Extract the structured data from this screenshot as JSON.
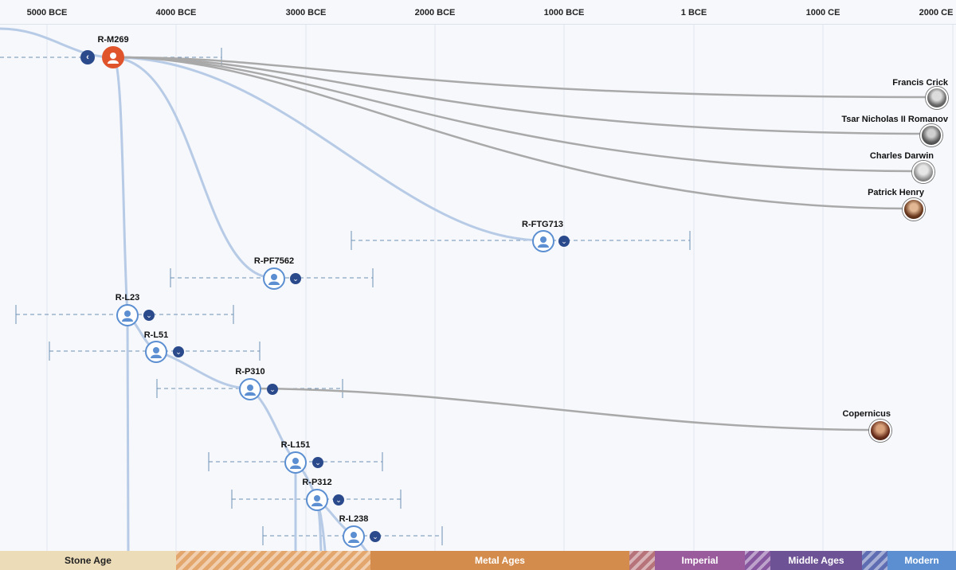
{
  "axis": {
    "ticks": [
      "5000 BCE",
      "4000 BCE",
      "3000 BCE",
      "2000 BCE",
      "1000 BCE",
      "1 BCE",
      "1000 CE",
      "2000 CE"
    ]
  },
  "eras": {
    "stone_age": "Stone Age",
    "metal_ages": "Metal Ages",
    "imperial": "Imperial",
    "middle_ages": "Middle Ages",
    "modern": "Modern"
  },
  "haplogroups": {
    "root": "R-M269",
    "ftg713": "R-FTG713",
    "pf7562": "R-PF7562",
    "l23": "R-L23",
    "l51": "R-L51",
    "p310": "R-P310",
    "l151": "R-L151",
    "p312": "R-P312",
    "l238": "R-L238"
  },
  "people": {
    "crick": "Francis Crick",
    "nicholas": "Tsar Nicholas II Romanov",
    "darwin": "Charles Darwin",
    "henry": "Patrick Henry",
    "copernicus": "Copernicus"
  },
  "colors": {
    "lineage_line": "#b7cbe6",
    "person_line": "#a9a9a9",
    "node_ring": "#5b8fd1",
    "root_node": "#e0542c",
    "expand": "#2b4a8b",
    "stone_age": "#ecdcb8",
    "metal_ages": "#d38c4c",
    "imperial": "#9a5b9d",
    "middle_ages": "#6d5295",
    "modern": "#5b8fd1"
  }
}
